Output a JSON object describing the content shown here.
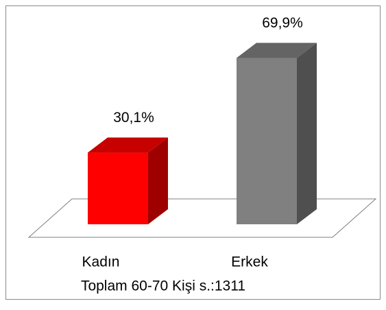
{
  "chart_data": {
    "type": "bar3d",
    "categories": [
      "Kadın",
      "Erkek"
    ],
    "values": [
      30.1,
      69.9
    ],
    "value_labels": [
      "30,1%",
      "69,9%"
    ],
    "colors": [
      "#ff0000",
      "#808080"
    ],
    "xlabel": "Toplam 60-70 Kişi s.:1311"
  }
}
